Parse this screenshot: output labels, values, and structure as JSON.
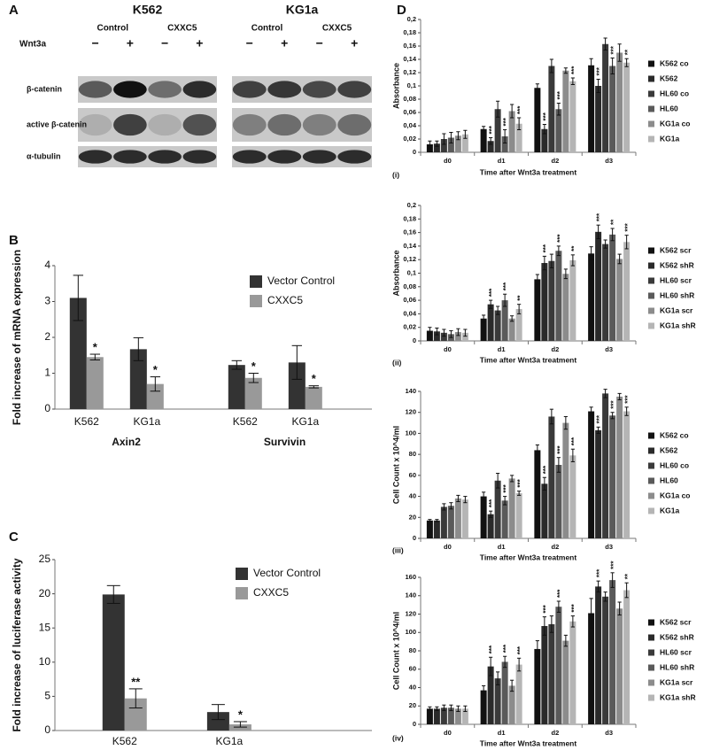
{
  "panel_labels": [
    "A",
    "B",
    "C",
    "D"
  ],
  "blot": {
    "cell_lines": [
      "K562",
      "KG1a"
    ],
    "conditions": [
      "Control",
      "CXXC5"
    ],
    "treatment": "Wnt3a",
    "lanes": [
      "−",
      "+",
      "−",
      "+"
    ],
    "rows": [
      "β-catenin",
      "active β-catenin",
      "α-tubulin"
    ]
  },
  "chart_data": [
    {
      "type": "bar",
      "categories": [
        "K562",
        "KG1a",
        "K562",
        "KG1a"
      ],
      "groups": [
        "Axin2",
        "Survivin"
      ],
      "ylabel": "Fold increase of mRNA expression",
      "ylim": [
        0,
        4
      ],
      "yticks": [
        0,
        1,
        2,
        3,
        4
      ],
      "legend": "upper right",
      "series": [
        {
          "name": "Vector Control",
          "color": "#333333",
          "values": [
            3.1,
            1.67,
            1.23,
            1.3
          ],
          "errors": [
            0.63,
            0.32,
            0.12,
            0.47
          ]
        },
        {
          "name": "CXXC5",
          "color": "#999999",
          "values": [
            1.45,
            0.7,
            0.87,
            0.62
          ],
          "errors": [
            0.08,
            0.2,
            0.13,
            0.03
          ],
          "significance": [
            "*",
            "*",
            "*",
            "*"
          ]
        }
      ]
    },
    {
      "type": "bar",
      "categories": [
        "K562",
        "KG1a"
      ],
      "ylabel": "Fold increase of luciferase activity",
      "ylim": [
        0,
        25
      ],
      "yticks": [
        0,
        5,
        10,
        15,
        20,
        25
      ],
      "legend": "upper right",
      "series": [
        {
          "name": "Vector Control",
          "color": "#333333",
          "values": [
            19.9,
            2.7
          ],
          "errors": [
            1.3,
            1.1
          ]
        },
        {
          "name": "CXXC5",
          "color": "#999999",
          "values": [
            4.7,
            0.9
          ],
          "errors": [
            1.4,
            0.4
          ],
          "significance": [
            "**",
            "*"
          ]
        }
      ]
    },
    {
      "type": "bar",
      "label": "(i)",
      "categories": [
        "d0",
        "d1",
        "d2",
        "d3"
      ],
      "xlabel": "Time after Wnt3a treatment",
      "ylabel": "Absorbance",
      "ylim": [
        0,
        0.2
      ],
      "yticks": [
        0,
        {
          "value": 0.02,
          "label": "0,02"
        },
        {
          "value": 0.04,
          "label": "0,04"
        },
        {
          "value": 0.06,
          "label": "0,06"
        },
        {
          "value": 0.08,
          "label": "0,08"
        },
        {
          "value": 0.1,
          "label": "0,1"
        },
        {
          "value": 0.12,
          "label": "0,12"
        },
        {
          "value": 0.14,
          "label": "0,14"
        },
        {
          "value": 0.16,
          "label": "0,16"
        },
        {
          "value": 0.18,
          "label": "0,18"
        },
        {
          "value": 0.2,
          "label": "0,2"
        }
      ],
      "legend": "right",
      "series": [
        {
          "name": "K562 co",
          "color": "#111111",
          "values": [
            0.012,
            0.035,
            0.097,
            0.131
          ],
          "errors": [
            0.005,
            0.004,
            0.006,
            0.01
          ]
        },
        {
          "name": "K562",
          "color": "#2a2a2a",
          "values": [
            0.013,
            0.017,
            0.035,
            0.1
          ],
          "errors": [
            0.004,
            0.005,
            0.007,
            0.01
          ],
          "significance": [
            null,
            "***",
            "***",
            "***"
          ]
        },
        {
          "name": "HL60 co",
          "color": "#3a3a3a",
          "values": [
            0.02,
            0.065,
            0.13,
            0.163
          ],
          "errors": [
            0.008,
            0.012,
            0.01,
            0.009
          ]
        },
        {
          "name": "HL60",
          "color": "#5a5a5a",
          "values": [
            0.022,
            0.024,
            0.065,
            0.13
          ],
          "errors": [
            0.008,
            0.01,
            0.009,
            0.012
          ],
          "significance": [
            null,
            "***",
            "***",
            "***"
          ]
        },
        {
          "name": "KG1a co",
          "color": "#8c8c8c",
          "values": [
            0.025,
            0.062,
            0.123,
            0.15
          ],
          "errors": [
            0.006,
            0.01,
            0.004,
            0.013
          ]
        },
        {
          "name": "KG1a",
          "color": "#b5b5b5",
          "values": [
            0.027,
            0.043,
            0.107,
            0.135
          ],
          "errors": [
            0.006,
            0.009,
            0.005,
            0.006
          ],
          "significance": [
            null,
            "***",
            "***",
            "**"
          ]
        }
      ]
    },
    {
      "type": "bar",
      "label": "(ii)",
      "categories": [
        "d0",
        "d1",
        "d2",
        "d3"
      ],
      "xlabel": "Time after Wnt3a treatment",
      "ylabel": "Absorbance",
      "ylim": [
        0,
        0.2
      ],
      "yticks": [
        0,
        {
          "value": 0.02,
          "label": "0,02"
        },
        {
          "value": 0.04,
          "label": "0,04"
        },
        {
          "value": 0.06,
          "label": "0,06"
        },
        {
          "value": 0.08,
          "label": "0,08"
        },
        {
          "value": 0.1,
          "label": "0,1"
        },
        {
          "value": 0.12,
          "label": "0,12"
        },
        {
          "value": 0.14,
          "label": "0,14"
        },
        {
          "value": 0.16,
          "label": "0,16"
        },
        {
          "value": 0.18,
          "label": "0,18"
        },
        {
          "value": 0.2,
          "label": "0,2"
        }
      ],
      "legend": "right",
      "series": [
        {
          "name": "K562 scr",
          "color": "#111111",
          "values": [
            0.015,
            0.033,
            0.091,
            0.129
          ],
          "errors": [
            0.005,
            0.005,
            0.007,
            0.01
          ]
        },
        {
          "name": "K562 shR",
          "color": "#2a2a2a",
          "values": [
            0.014,
            0.054,
            0.115,
            0.161
          ],
          "errors": [
            0.005,
            0.006,
            0.01,
            0.01
          ],
          "significance": [
            null,
            "***",
            "***",
            "***"
          ]
        },
        {
          "name": "HL60 scr",
          "color": "#3a3a3a",
          "values": [
            0.012,
            0.045,
            0.118,
            0.143
          ],
          "errors": [
            0.005,
            0.006,
            0.01,
            0.006
          ]
        },
        {
          "name": "HL60 shR",
          "color": "#5a5a5a",
          "values": [
            0.01,
            0.06,
            0.133,
            0.157
          ],
          "errors": [
            0.005,
            0.009,
            0.007,
            0.009
          ],
          "significance": [
            null,
            "***",
            "***",
            "**"
          ]
        },
        {
          "name": "KG1a scr",
          "color": "#8c8c8c",
          "values": [
            0.013,
            0.033,
            0.099,
            0.121
          ],
          "errors": [
            0.005,
            0.004,
            0.007,
            0.007
          ]
        },
        {
          "name": "KG1a shR",
          "color": "#b5b5b5",
          "values": [
            0.012,
            0.047,
            0.119,
            0.146
          ],
          "errors": [
            0.005,
            0.007,
            0.008,
            0.01
          ],
          "significance": [
            null,
            "**",
            "**",
            "***"
          ]
        }
      ]
    },
    {
      "type": "bar",
      "label": "(iii)",
      "categories": [
        "d0",
        "d1",
        "d2",
        "d3"
      ],
      "xlabel": "Time after Wnt3a treatment",
      "ylabel": "Cell Count x 10^4/ml",
      "ylim": [
        0,
        140
      ],
      "yticks": [
        0,
        20,
        40,
        60,
        80,
        100,
        120,
        140
      ],
      "legend": "right",
      "series": [
        {
          "name": "K562 co",
          "color": "#111111",
          "values": [
            17,
            40,
            84,
            121
          ],
          "errors": [
            1,
            4,
            5,
            4
          ]
        },
        {
          "name": "K562",
          "color": "#2a2a2a",
          "values": [
            17,
            23,
            52,
            103
          ],
          "errors": [
            1,
            3,
            6,
            3
          ],
          "significance": [
            null,
            "***",
            "***",
            "***"
          ]
        },
        {
          "name": "HL60 co",
          "color": "#3a3a3a",
          "values": [
            30,
            55,
            116,
            138
          ],
          "errors": [
            3,
            7,
            7,
            4
          ]
        },
        {
          "name": "HL60",
          "color": "#5a5a5a",
          "values": [
            31,
            36,
            70,
            117
          ],
          "errors": [
            3,
            4,
            7,
            3
          ],
          "significance": [
            null,
            "***",
            "***",
            "***"
          ]
        },
        {
          "name": "KG1a co",
          "color": "#8c8c8c",
          "values": [
            38,
            57,
            110,
            135
          ],
          "errors": [
            3,
            3,
            6,
            3
          ]
        },
        {
          "name": "KG1a",
          "color": "#b5b5b5",
          "values": [
            37,
            43,
            79,
            121
          ],
          "errors": [
            3,
            2,
            6,
            4
          ],
          "significance": [
            null,
            "***",
            "***",
            "***"
          ]
        }
      ]
    },
    {
      "type": "bar",
      "label": "(iv)",
      "categories": [
        "d0",
        "d1",
        "d2",
        "d3"
      ],
      "xlabel": "Time after Wnt3a treatment",
      "ylabel": "Cell Count x 10^4/ml",
      "ylim": [
        0,
        160
      ],
      "yticks": [
        0,
        20,
        40,
        60,
        80,
        100,
        120,
        140,
        160
      ],
      "legend": "right",
      "series": [
        {
          "name": "K562 scr",
          "color": "#111111",
          "values": [
            17,
            37,
            82,
            121
          ],
          "errors": [
            2,
            5,
            9,
            16
          ]
        },
        {
          "name": "K562 shR",
          "color": "#2a2a2a",
          "values": [
            17,
            63,
            107,
            150
          ],
          "errors": [
            2,
            10,
            10,
            6
          ],
          "significance": [
            null,
            "***",
            "***",
            "***"
          ]
        },
        {
          "name": "HL60 scr",
          "color": "#3a3a3a",
          "values": [
            18,
            50,
            109,
            139
          ],
          "errors": [
            3,
            7,
            9,
            5
          ]
        },
        {
          "name": "HL60 shR",
          "color": "#5a5a5a",
          "values": [
            18,
            68,
            128,
            157
          ],
          "errors": [
            3,
            6,
            6,
            8
          ],
          "significance": [
            null,
            "***",
            "***",
            "***"
          ]
        },
        {
          "name": "KG1a scr",
          "color": "#8c8c8c",
          "values": [
            17,
            42,
            91,
            126
          ],
          "errors": [
            3,
            6,
            6,
            7
          ]
        },
        {
          "name": "KG1a shR",
          "color": "#b5b5b5",
          "values": [
            17,
            65,
            112,
            146
          ],
          "errors": [
            3,
            7,
            6,
            8
          ],
          "significance": [
            null,
            "***",
            "***",
            "**"
          ]
        }
      ]
    }
  ]
}
